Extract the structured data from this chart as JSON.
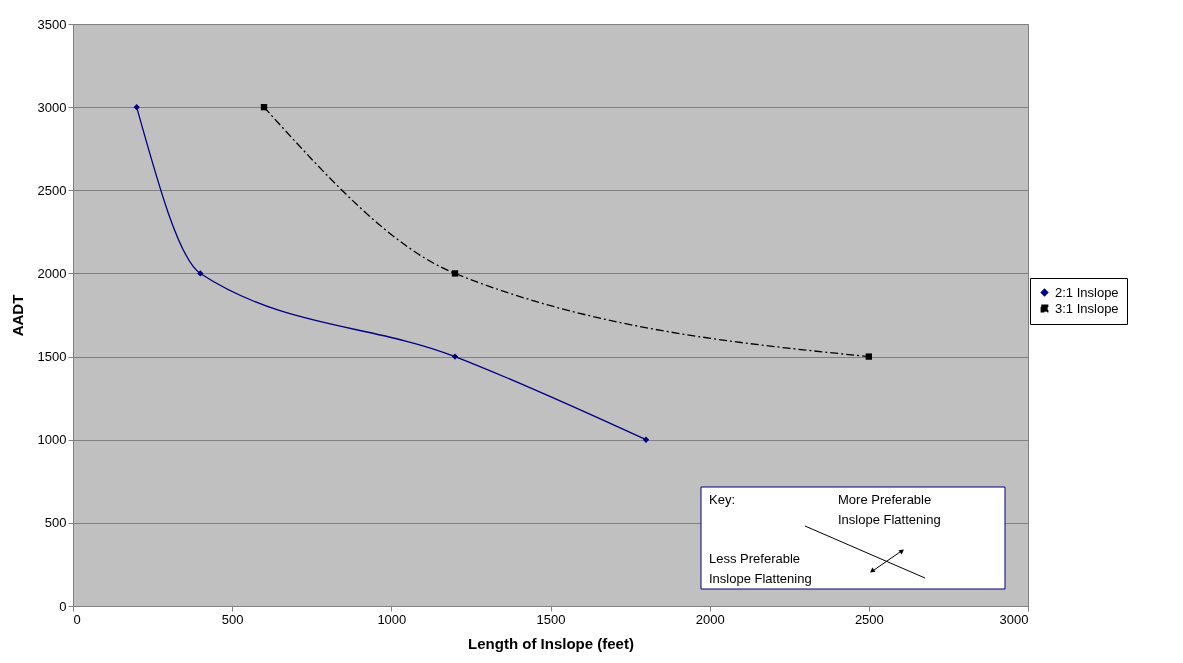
{
  "chart_data": {
    "type": "line",
    "xlabel": "Length of Inslope (feet)",
    "ylabel": "AADT",
    "xlim": [
      0,
      3000
    ],
    "xticks": [
      0,
      500,
      1000,
      1500,
      2000,
      2500,
      3000
    ],
    "ylim": [
      0,
      3500
    ],
    "yticks": [
      0,
      500,
      1000,
      1500,
      2000,
      2500,
      3000,
      3500
    ],
    "grid": "y",
    "legend": "right",
    "series": [
      {
        "name": "2:1 Inslope",
        "color": "#000080",
        "x": [
          200,
          400,
          1200,
          1800
        ],
        "values": [
          3000,
          2000,
          1500,
          1000
        ],
        "marker": "diamond",
        "line_style": "solid"
      },
      {
        "name": "3:1 Inslope",
        "color": "#000000",
        "x": [
          600,
          1200,
          2500
        ],
        "values": [
          3000,
          2000,
          1500
        ],
        "marker": "square",
        "line_style": "dashed"
      }
    ],
    "annotations": [
      "Key:",
      "More Preferable\nInslope Flattening",
      "Less Preferable\nInslope Flattening"
    ]
  }
}
